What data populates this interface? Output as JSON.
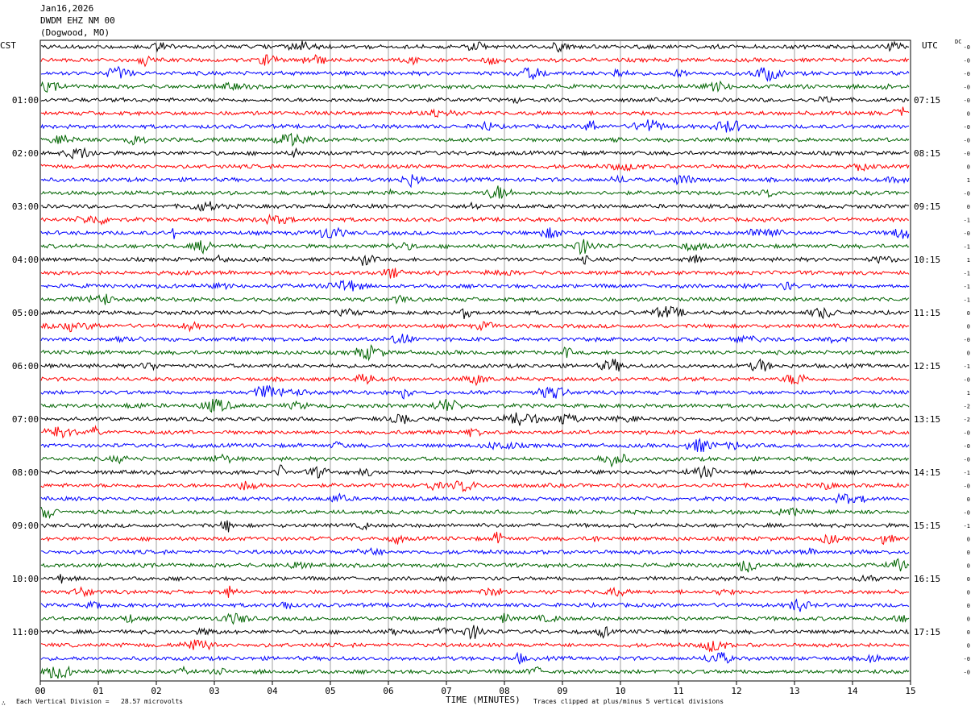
{
  "header": {
    "date": "Jan16,2026",
    "station": "DWDM EHZ NM 00",
    "location": "(Dogwood, MO)"
  },
  "left_zone": "CST",
  "right_zone": "UTC",
  "dc_label": "DC",
  "footer": {
    "logo_mark": "∴",
    "scale_note": "Each Vertical Division =   28.57 microvolts",
    "xlabel": "TIME (MINUTES)",
    "clip_note": "Traces clipped at plus/minus 5 vertical divisions"
  },
  "chart_data": {
    "type": "line",
    "title": "",
    "xlabel": "TIME (MINUTES)",
    "xlim": [
      0,
      15
    ],
    "x_ticks": [
      "00",
      "01",
      "02",
      "03",
      "04",
      "05",
      "06",
      "07",
      "08",
      "09",
      "10",
      "11",
      "12",
      "13",
      "14",
      "15"
    ],
    "trace_colors": [
      "#000000",
      "#ff0000",
      "#0000ff",
      "#006400"
    ],
    "trace_count": 48,
    "traces_per_hour": 4,
    "left_hour_labels": [
      "01:00",
      "02:00",
      "03:00",
      "04:00",
      "05:00",
      "06:00",
      "07:00",
      "08:00",
      "09:00",
      "10:00",
      "11:00"
    ],
    "right_hour_labels": [
      "07:15",
      "08:15",
      "09:15",
      "10:15",
      "11:15",
      "12:15",
      "13:15",
      "14:15",
      "15:15",
      "16:15",
      "17:15"
    ],
    "dc_offsets": [
      "-0",
      "-0",
      "-0",
      "-0",
      "-0",
      "0",
      "-0",
      "-0",
      "-0",
      "0",
      "1",
      "-0",
      "0",
      "-1",
      "-0",
      "-1",
      "1",
      "-1",
      "-1",
      "-1",
      "0",
      "0",
      "-0",
      "0",
      "-1",
      "-0",
      "1",
      "-2",
      "-2",
      "-0",
      "-0",
      "-0",
      "-1",
      "-0",
      "0",
      "-0",
      "-1",
      "0",
      "0",
      "0",
      "0",
      "0",
      "0",
      "0",
      "0",
      "0",
      "-0",
      "-0"
    ]
  }
}
